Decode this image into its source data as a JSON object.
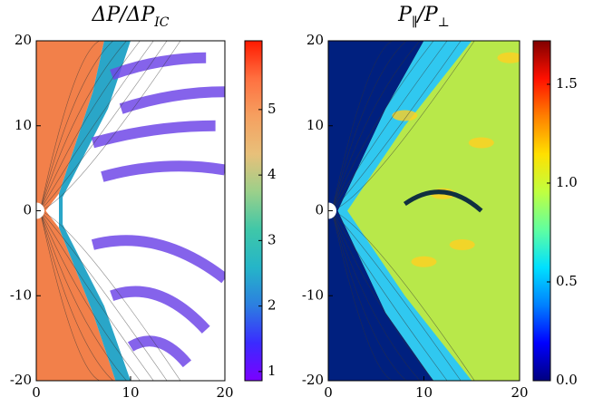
{
  "chart_data": [
    {
      "type": "heatmap",
      "title": [
        "ΔP/ΔP",
        "IC"
      ],
      "xlim": [
        0,
        20
      ],
      "ylim": [
        -20,
        20
      ],
      "xticks": [
        0,
        10,
        20
      ],
      "yticks": [
        -20,
        -10,
        0,
        10,
        20
      ],
      "colorbar": {
        "lim": [
          0.86,
          6.05
        ],
        "ticks": [
          1,
          2,
          3,
          4,
          5
        ],
        "colors": [
          "#7b00ff",
          "#3a2bff",
          "#2c7fe0",
          "#25b5c8",
          "#3fc7a8",
          "#9bd08a",
          "#e8c07a",
          "#f5a060",
          "#ff7040",
          "#ff1a00"
        ]
      }
    },
    {
      "type": "heatmap",
      "title": [
        "P",
        "∥",
        "/P",
        "⊥"
      ],
      "xlim": [
        0,
        20
      ],
      "ylim": [
        -20,
        20
      ],
      "xticks": [
        0,
        10,
        20
      ],
      "yticks": [
        -20,
        -10,
        0,
        10,
        20
      ],
      "colorbar": {
        "lim": [
          0,
          1.72
        ],
        "ticks": [
          {
            "value": 0,
            "label": "0.0"
          },
          0.5,
          {
            "value": 1,
            "label": "1.0"
          },
          1.5
        ],
        "colors": [
          "#00007f",
          "#0000ff",
          "#0080ff",
          "#00e0ff",
          "#60ffa0",
          "#c0ff40",
          "#ffe000",
          "#ff8000",
          "#ff1000",
          "#800000"
        ]
      }
    }
  ]
}
